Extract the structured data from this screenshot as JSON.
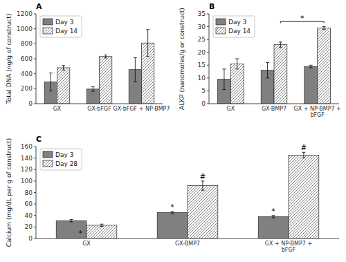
{
  "chart_data": [
    {
      "type": "bar",
      "title": "A",
      "y_label": "Total DNA (ng/g of construct)",
      "categories": [
        "GX",
        "GX-bFGF",
        "GX-bFGF + NP-BMP7"
      ],
      "series": [
        {
          "name": "Day 3",
          "color": "#808080",
          "values": [
            290,
            195,
            455
          ],
          "errors": [
            120,
            30,
            160
          ]
        },
        {
          "name": "Day 14",
          "color": "#ffffff",
          "values": [
            480,
            630,
            810
          ],
          "errors": [
            30,
            20,
            180
          ]
        }
      ],
      "ylim": [
        0,
        1200
      ],
      "yticks": [
        0,
        200,
        400,
        600,
        800,
        1000,
        1200
      ],
      "legend": "upper left"
    },
    {
      "type": "bar",
      "title": "B",
      "y_label": "ALKP (nanomoles/g or construct)",
      "categories": [
        "GX",
        "GX-BMP7",
        "GX + NP-BMP7 +\nbFGF"
      ],
      "series": [
        {
          "name": "Day 3",
          "color": "#808080",
          "values": [
            9.5,
            13.0,
            14.5
          ],
          "errors": [
            4.0,
            3.0,
            0.5
          ]
        },
        {
          "name": "Day 14",
          "color": "#ffffff",
          "values": [
            15.5,
            23.0,
            29.5
          ],
          "errors": [
            2.0,
            1.0,
            0.5
          ]
        }
      ],
      "ylim": [
        0,
        35
      ],
      "yticks": [
        0,
        5,
        10,
        15,
        20,
        25,
        30,
        35
      ],
      "legend": "upper left",
      "annotations": [
        {
          "text": "*",
          "y": 32.0,
          "from": "GX-BMP7",
          "to": "GX + NP-BMP7 +\nbFGF",
          "series": "Day 14"
        }
      ]
    },
    {
      "type": "bar",
      "title": "C",
      "y_label": "Calcium (mg/dL per g of construct)",
      "categories": [
        "GX",
        "GX-BMP7",
        "GX + NP-BMP7 +\nbFGF"
      ],
      "series": [
        {
          "name": "Day 3",
          "color": "#808080",
          "values": [
            31,
            45,
            38
          ],
          "errors": [
            2,
            2,
            2
          ]
        },
        {
          "name": "Day 28",
          "color": "#ffffff",
          "values": [
            23,
            92,
            145
          ],
          "errors": [
            2,
            8,
            5
          ]
        }
      ],
      "ylim": [
        0,
        160
      ],
      "yticks": [
        0,
        20,
        40,
        60,
        80,
        100,
        120,
        140,
        160
      ],
      "legend": "upper left",
      "annotations": [
        {
          "text": "*",
          "category": "GX",
          "series": "Day 28",
          "position": "below"
        },
        {
          "text": "*",
          "category": "GX-BMP7",
          "series": "Day 3",
          "position": "above"
        },
        {
          "text": "*",
          "category": "GX + NP-BMP7 +\nbFGF",
          "series": "Day 3",
          "position": "above"
        },
        {
          "text": "#",
          "category": "GX-BMP7",
          "series": "Day 28",
          "position": "above"
        },
        {
          "text": "#",
          "category": "GX + NP-BMP7 +\nbFGF",
          "series": "Day 28",
          "position": "above"
        }
      ]
    }
  ]
}
